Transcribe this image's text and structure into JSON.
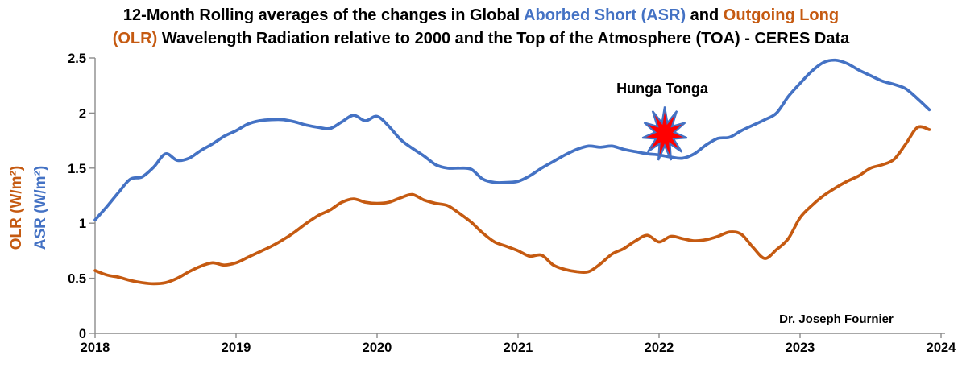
{
  "title": {
    "part1": "12-Month Rolling averages of the changes in Global ",
    "asr_highlight": "Aborbed Short (ASR)",
    "mid": " and ",
    "olr_line1": "Outgoing Long",
    "olr_line2": "(OLR)",
    "part2": " Wavelength Radiation relative to 2000 and the Top of the Atmosphere (TOA) - CERES Data"
  },
  "axes": {
    "y_label_outer": "OLR (W/m²)",
    "y_label_inner": "ASR (W/m²)"
  },
  "annotations": {
    "hunga_tonga": "Hunga Tonga",
    "credit": "Dr. Joseph Fournier"
  },
  "colors": {
    "asr_blue": "#4472C4",
    "olr_orange": "#C55A11",
    "axis_gray": "#8c8c8c",
    "starburst_red": "#FF0000"
  },
  "chart_data": {
    "type": "line",
    "title": "12-Month Rolling averages of the changes in Global Aborbed Short (ASR) and Outgoing Long (OLR) Wavelength Radiation relative to 2000 and the Top of the Atmosphere (TOA) - CERES Data",
    "x_axis": {
      "start": "2018-01",
      "step": "1 month",
      "tick_labels": [
        "2018",
        "2019",
        "2020",
        "2021",
        "2022",
        "2023",
        "2024"
      ],
      "range_years": [
        2018,
        2024
      ]
    },
    "y_axis": {
      "label_left_outer": "OLR (W/m²)",
      "label_left_inner": "ASR (W/m²)",
      "ticks": [
        "0",
        "0.5",
        "1",
        "1.5",
        "2",
        "2.5"
      ],
      "lim": [
        0,
        2.5
      ],
      "grid": false
    },
    "legend": "none",
    "series": [
      {
        "id": "asr",
        "name": "ASR (W/m²)",
        "color": "#4472C4",
        "values": [
          1.03,
          1.15,
          1.28,
          1.4,
          1.42,
          1.51,
          1.63,
          1.57,
          1.59,
          1.66,
          1.72,
          1.79,
          1.84,
          1.9,
          1.93,
          1.94,
          1.94,
          1.92,
          1.89,
          1.87,
          1.86,
          1.92,
          1.98,
          1.93,
          1.97,
          1.88,
          1.76,
          1.68,
          1.61,
          1.53,
          1.5,
          1.5,
          1.49,
          1.4,
          1.37,
          1.37,
          1.38,
          1.43,
          1.5,
          1.56,
          1.62,
          1.67,
          1.7,
          1.69,
          1.7,
          1.67,
          1.65,
          1.63,
          1.62,
          1.6,
          1.59,
          1.63,
          1.71,
          1.77,
          1.78,
          1.84,
          1.89,
          1.94,
          2.0,
          2.15,
          2.27,
          2.38,
          2.46,
          2.48,
          2.45,
          2.39,
          2.34,
          2.29,
          2.26,
          2.22,
          2.13,
          2.03
        ]
      },
      {
        "id": "olr",
        "name": "OLR (W/m²)",
        "color": "#C55A11",
        "values": [
          0.57,
          0.53,
          0.51,
          0.48,
          0.46,
          0.45,
          0.46,
          0.5,
          0.56,
          0.61,
          0.64,
          0.62,
          0.64,
          0.69,
          0.74,
          0.79,
          0.85,
          0.92,
          1.0,
          1.07,
          1.12,
          1.19,
          1.22,
          1.19,
          1.18,
          1.19,
          1.23,
          1.26,
          1.21,
          1.18,
          1.16,
          1.09,
          1.01,
          0.91,
          0.83,
          0.79,
          0.75,
          0.7,
          0.71,
          0.62,
          0.58,
          0.56,
          0.56,
          0.63,
          0.72,
          0.77,
          0.84,
          0.89,
          0.83,
          0.88,
          0.86,
          0.84,
          0.85,
          0.88,
          0.92,
          0.9,
          0.78,
          0.68,
          0.76,
          0.86,
          1.05,
          1.16,
          1.25,
          1.32,
          1.38,
          1.43,
          1.5,
          1.53,
          1.58,
          1.72,
          1.87,
          1.85
        ]
      }
    ],
    "annotations": [
      {
        "label": "Hunga Tonga",
        "marker": "starburst",
        "x_year": 2022.04,
        "y_value": 1.81,
        "fill": "#FF0000",
        "border": "#4472C4"
      }
    ]
  }
}
